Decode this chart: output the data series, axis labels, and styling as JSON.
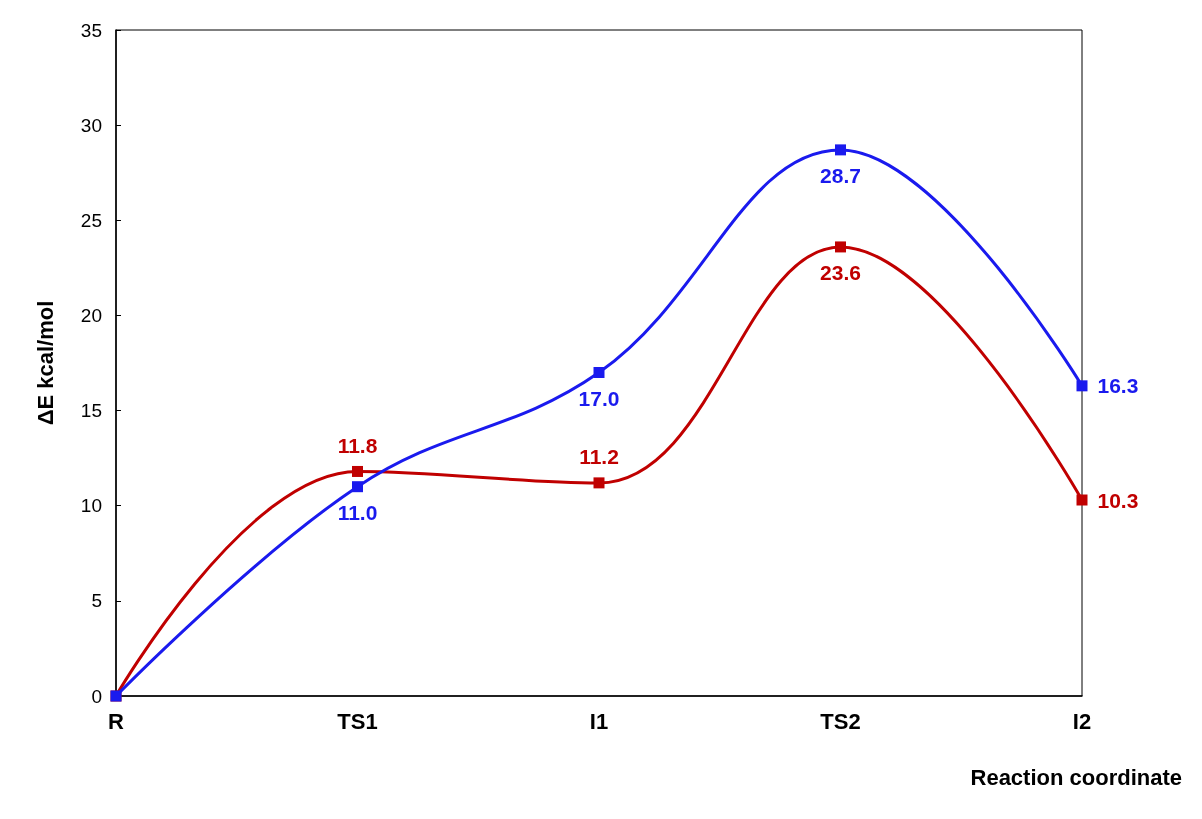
{
  "chart_data": {
    "type": "line",
    "xlabel": "Reaction coordinate",
    "ylabel": "ΔE kcal/mol",
    "categories": [
      "R",
      "TS1",
      "I1",
      "TS2",
      "I2"
    ],
    "series": [
      {
        "color": "#1a1aee",
        "values": [
          0,
          11.0,
          17.0,
          28.7,
          16.3
        ],
        "value_labels": [
          null,
          "11.0",
          "17.0",
          "28.7",
          "16.3"
        ]
      },
      {
        "color": "#c00000",
        "values": [
          0,
          11.8,
          11.2,
          23.6,
          10.3
        ],
        "value_labels": [
          null,
          "11.8",
          "11.2",
          "23.6",
          "10.3"
        ]
      }
    ],
    "ylim": [
      0,
      35
    ],
    "yticks": [
      0,
      5,
      10,
      15,
      20,
      25,
      30,
      35
    ],
    "grid": false,
    "marker": "square",
    "line_style": "solid"
  }
}
